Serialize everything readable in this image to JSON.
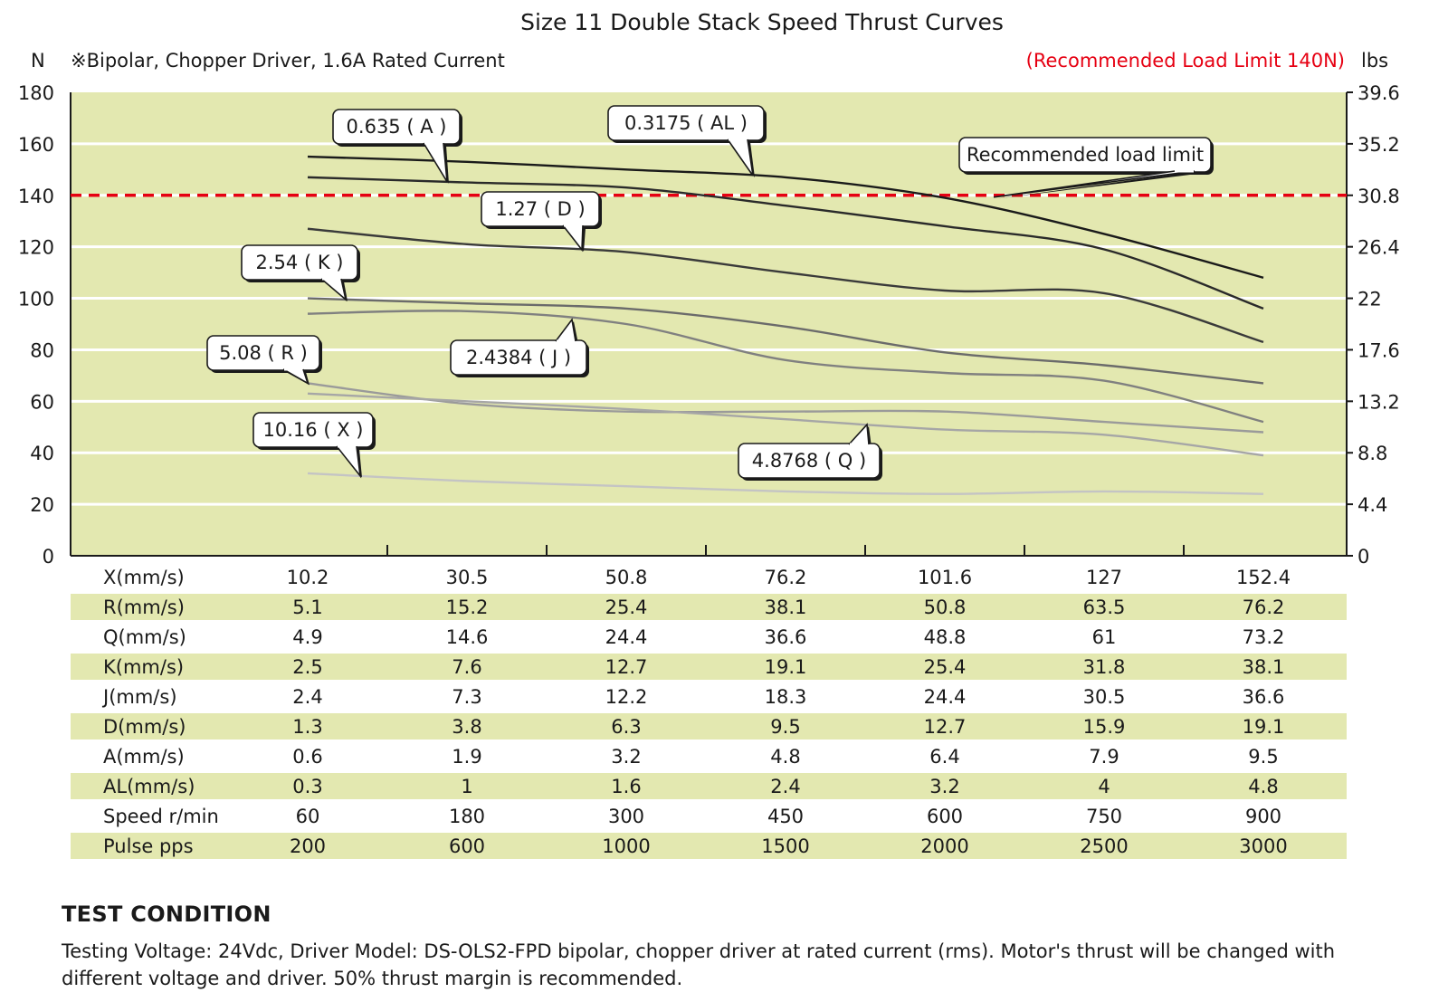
{
  "chart_data": {
    "type": "line",
    "title": "Size 11 Double Stack Speed Thrust Curves",
    "subtitle": "※Bipolar, Chopper Driver, 1.6A Rated Current",
    "left_axis_unit": "N",
    "right_axis_unit": "lbs",
    "limit_text": "(Recommended Load Limit 140N)",
    "limit_value": 140,
    "limit_color": "#e60012",
    "plot_bg": "#e3e8b0",
    "ylim": [
      0,
      180
    ],
    "y_ticks": [
      0,
      20,
      40,
      60,
      80,
      100,
      120,
      140,
      160,
      180
    ],
    "y_right_ticks": [
      "0",
      "4.4",
      "8.8",
      "13.2",
      "17.6",
      "22",
      "26.4",
      "30.8",
      "35.2",
      "39.6"
    ],
    "x_columns": 7,
    "series": [
      {
        "name": "0.3175 ( AL )",
        "color": "#1a1a1a",
        "values": [
          155,
          153,
          150,
          147,
          139,
          125,
          108
        ]
      },
      {
        "name": "0.635 ( A )",
        "color": "#2a2a2a",
        "values": [
          147,
          145,
          143,
          136,
          128,
          119,
          96
        ]
      },
      {
        "name": "1.27 ( D )",
        "color": "#3a3a3a",
        "values": [
          127,
          121,
          118,
          110,
          103,
          102,
          83
        ]
      },
      {
        "name": "2.54 ( K )",
        "color": "#6b6b6b",
        "values": [
          100,
          98,
          96,
          89,
          79,
          74,
          67
        ]
      },
      {
        "name": "2.4384 ( J )",
        "color": "#808080",
        "values": [
          94,
          95,
          90,
          76,
          71,
          68,
          52
        ]
      },
      {
        "name": "5.08 ( R )",
        "color": "#9a9a9a",
        "values": [
          67,
          59,
          56,
          56,
          56,
          52,
          48
        ]
      },
      {
        "name": "4.8768 ( Q )",
        "color": "#a6a6a6",
        "values": [
          63,
          60,
          57,
          53,
          49,
          47,
          39
        ]
      },
      {
        "name": "10.16 ( X )",
        "color": "#c4c4c4",
        "values": [
          32,
          29,
          27,
          25,
          24,
          25,
          24
        ]
      }
    ],
    "callouts": [
      {
        "label": "0.635 ( A )",
        "series": 1
      },
      {
        "label": "0.3175 ( AL )",
        "series": 0
      },
      {
        "label": "Recommended load limit",
        "series": -1
      },
      {
        "label": "1.27 ( D )",
        "series": 2
      },
      {
        "label": "2.54 ( K )",
        "series": 3
      },
      {
        "label": "2.4384 ( J )",
        "series": 4
      },
      {
        "label": "5.08 ( R )",
        "series": 5
      },
      {
        "label": "10.16 ( X )",
        "series": 7
      },
      {
        "label": "4.8768 ( Q )",
        "series": 6
      }
    ],
    "table": {
      "stripe_color": "#e3e8b0",
      "rows": [
        {
          "label": "X(mm/s)",
          "values": [
            "10.2",
            "30.5",
            "50.8",
            "76.2",
            "101.6",
            "127",
            "152.4"
          ]
        },
        {
          "label": "R(mm/s)",
          "values": [
            "5.1",
            "15.2",
            "25.4",
            "38.1",
            "50.8",
            "63.5",
            "76.2"
          ]
        },
        {
          "label": "Q(mm/s)",
          "values": [
            "4.9",
            "14.6",
            "24.4",
            "36.6",
            "48.8",
            "61",
            "73.2"
          ]
        },
        {
          "label": "K(mm/s)",
          "values": [
            "2.5",
            "7.6",
            "12.7",
            "19.1",
            "25.4",
            "31.8",
            "38.1"
          ]
        },
        {
          "label": "J(mm/s)",
          "values": [
            "2.4",
            "7.3",
            "12.2",
            "18.3",
            "24.4",
            "30.5",
            "36.6"
          ]
        },
        {
          "label": "D(mm/s)",
          "values": [
            "1.3",
            "3.8",
            "6.3",
            "9.5",
            "12.7",
            "15.9",
            "19.1"
          ]
        },
        {
          "label": "A(mm/s)",
          "values": [
            "0.6",
            "1.9",
            "3.2",
            "4.8",
            "6.4",
            "7.9",
            "9.5"
          ]
        },
        {
          "label": "AL(mm/s)",
          "values": [
            "0.3",
            "1",
            "1.6",
            "2.4",
            "3.2",
            "4",
            "4.8"
          ]
        },
        {
          "label": "Speed  r/min",
          "values": [
            "60",
            "180",
            "300",
            "450",
            "600",
            "750",
            "900"
          ]
        },
        {
          "label": "Pulse  pps",
          "values": [
            "200",
            "600",
            "1000",
            "1500",
            "2000",
            "2500",
            "3000"
          ]
        }
      ]
    }
  },
  "test_condition": {
    "heading": "TEST CONDITION",
    "text": "Testing Voltage: 24Vdc, Driver Model: DS-OLS2-FPD bipolar, chopper driver at rated current (rms). Motor's thrust will be changed with different voltage and driver. 50% thrust margin is recommended."
  }
}
